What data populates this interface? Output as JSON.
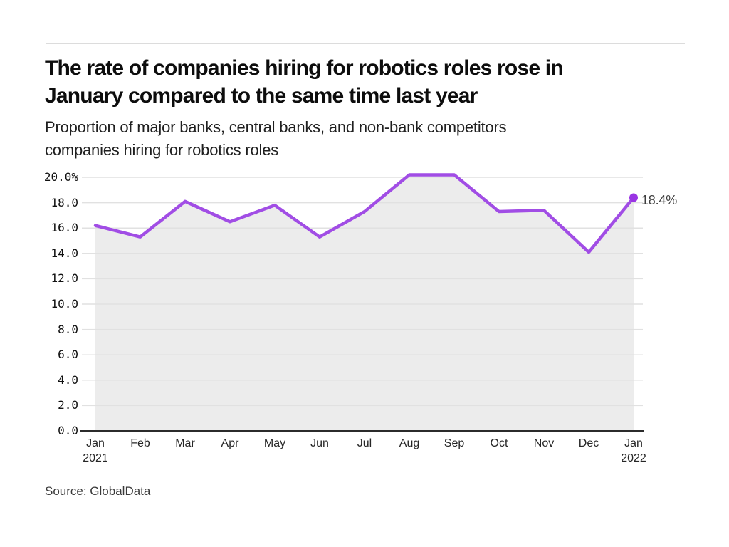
{
  "header": {
    "title_line1": "The rate of companies hiring for robotics roles rose in",
    "title_line2": "January compared to the same time last year",
    "subtitle_line1": "Proportion of major banks, central banks, and non-bank competitors",
    "subtitle_line2": "companies hiring for robotics roles"
  },
  "footer": {
    "source": "Source: GlobalData"
  },
  "chart_data": {
    "type": "area",
    "title": "The rate of companies hiring for robotics roles rose in January compared to the same time last year",
    "subtitle": "Proportion of major banks, central banks, and non-bank competitors companies hiring for robotics roles",
    "categories": [
      "Jan 2021",
      "Feb",
      "Mar",
      "Apr",
      "May",
      "Jun",
      "Jul",
      "Aug",
      "Sep",
      "Oct",
      "Nov",
      "Dec",
      "Jan 2022"
    ],
    "x_tick_lines": [
      [
        "Jan",
        "2021"
      ],
      [
        "Feb"
      ],
      [
        "Mar"
      ],
      [
        "Apr"
      ],
      [
        "May"
      ],
      [
        "Jun"
      ],
      [
        "Jul"
      ],
      [
        "Aug"
      ],
      [
        "Sep"
      ],
      [
        "Oct"
      ],
      [
        "Nov"
      ],
      [
        "Dec"
      ],
      [
        "Jan",
        "2022"
      ]
    ],
    "values": [
      16.2,
      15.3,
      18.1,
      16.5,
      17.8,
      15.3,
      17.3,
      20.2,
      20.2,
      17.3,
      17.4,
      14.1,
      18.4
    ],
    "end_label": "18.4%",
    "ylim": [
      0,
      20
    ],
    "y_ticks": [
      {
        "value": 20,
        "label": "20.0%"
      },
      {
        "value": 18,
        "label": "18.0"
      },
      {
        "value": 16,
        "label": "16.0"
      },
      {
        "value": 14,
        "label": "14.0"
      },
      {
        "value": 12,
        "label": "12.0"
      },
      {
        "value": 10,
        "label": "10.0"
      },
      {
        "value": 8,
        "label": "8.0"
      },
      {
        "value": 6,
        "label": "6.0"
      },
      {
        "value": 4,
        "label": "4.0"
      },
      {
        "value": 2,
        "label": "2.0"
      },
      {
        "value": 0,
        "label": "0.0"
      }
    ],
    "grid": true,
    "legend": "none",
    "colors": {
      "line": "#a14de5",
      "marker": "#9934e3",
      "area_fill": "#ececec",
      "gridline": "#e1e1e1",
      "axis_line": "#2b2b2b",
      "text": "#0d0d0d",
      "tick_text": "#262626",
      "top_rule": "#dcdcdc"
    }
  }
}
